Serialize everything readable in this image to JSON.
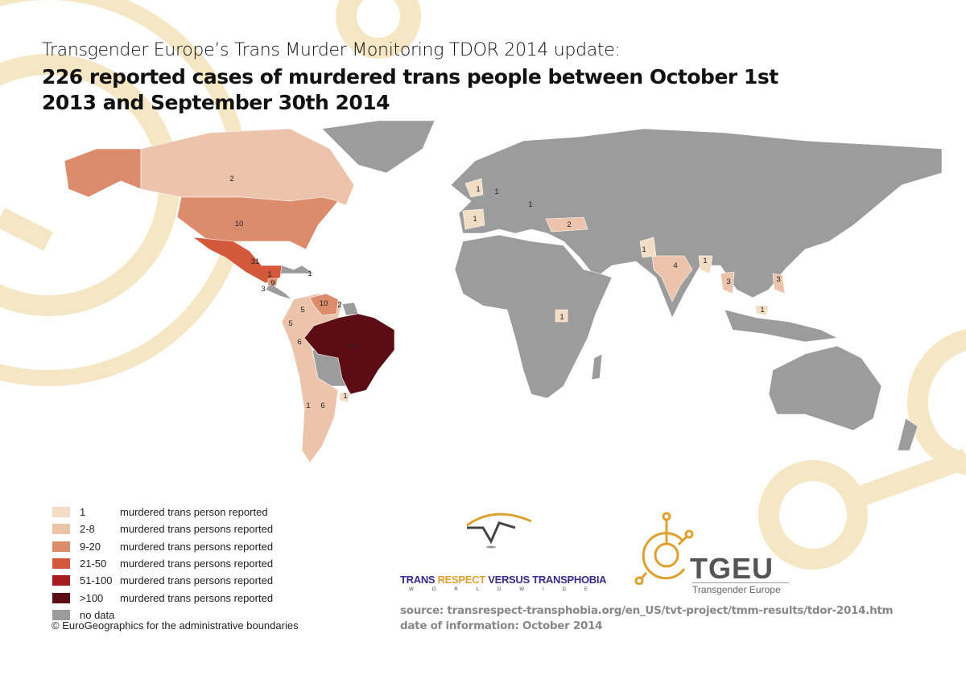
{
  "title": {
    "line1": "Transgender Europe’s Trans Murder Monitoring TDOR 2014 update:",
    "line2": "226 reported cases of murdered trans people between October 1st 2013 and September 30th 2014"
  },
  "colors": {
    "c1": "#f2dcc4",
    "c2_8": "#ecc4ac",
    "c9_20": "#dc8c6c",
    "c21_50": "#d4583c",
    "c51_100": "#a41c20",
    "c100": "#5c0c14",
    "nodata": "#9c9c9c",
    "decoration": "#f5e6c4"
  },
  "legend": [
    {
      "range": "1",
      "text": "murdered trans person reported",
      "color": "#f2dcc4"
    },
    {
      "range": "2-8",
      "text": "murdered trans persons reported",
      "color": "#ecc4ac"
    },
    {
      "range": "9-20",
      "text": "murdered trans persons reported",
      "color": "#dc8c6c"
    },
    {
      "range": "21-50",
      "text": "murdered trans persons reported",
      "color": "#d4583c"
    },
    {
      "range": "51-100",
      "text": "murdered trans persons reported",
      "color": "#a41c20"
    },
    {
      "range": ">100",
      "text": "murdered trans persons reported",
      "color": "#5c0c14"
    },
    {
      "range": "no data",
      "text": "",
      "color": "#9c9c9c"
    }
  ],
  "copyright": "© EuroGeographics for the administrative boundaries",
  "map_labels": [
    "2",
    "10",
    "31",
    "1",
    "9",
    "3",
    "1",
    "10",
    "2",
    "5",
    "5",
    "6",
    "113",
    "1",
    "1",
    "6",
    "1",
    "1",
    "1",
    "1",
    "2",
    "1",
    "1",
    "4",
    "1",
    "3",
    "3",
    "1"
  ],
  "logos": {
    "tvt": {
      "w1": "TRANS",
      "w2": "RESPECT",
      "w3": "VERSUS",
      "w4": "TRANSPHOBIA",
      "sub": "WORLDWIDE"
    },
    "tgeu": {
      "name": "TGEU",
      "sub": "Transgender Europe"
    }
  },
  "source": "source: transrespect-transphobia.org/en_US/tvt-project/tmm-results/tdor-2014.htm",
  "date": "date of information: October 2014"
}
